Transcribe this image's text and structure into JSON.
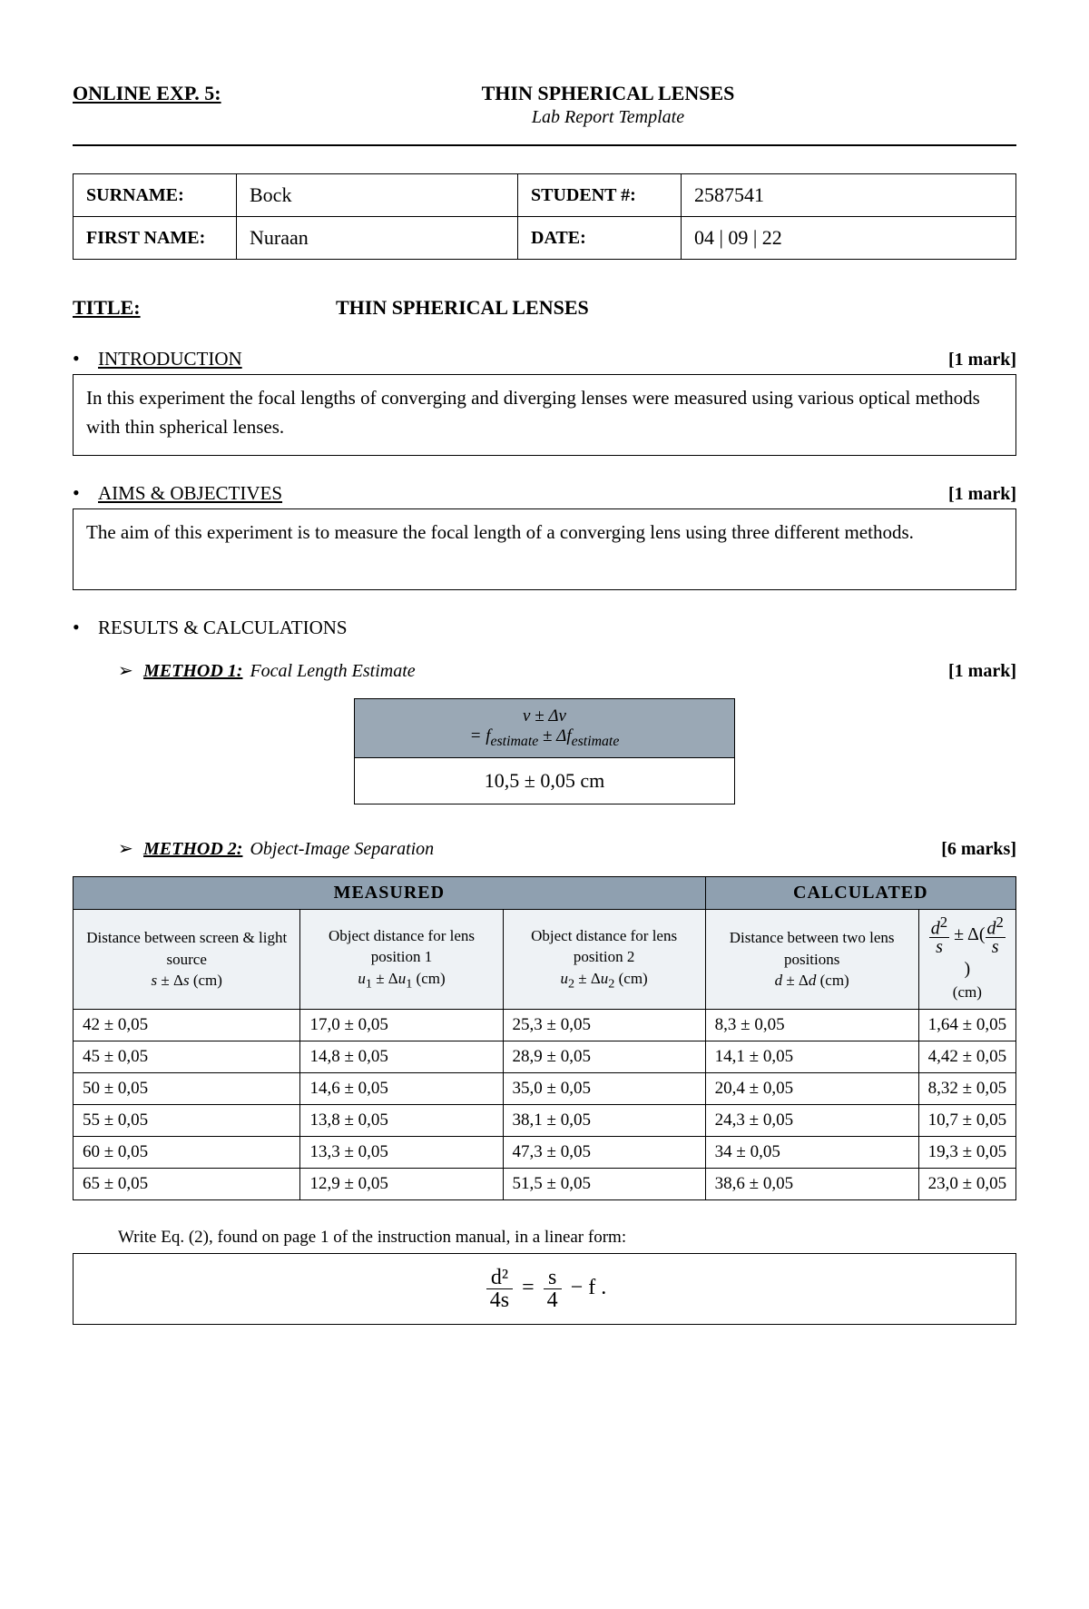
{
  "header": {
    "exp_label": "ONLINE EXP. 5:",
    "title": "THIN SPHERICAL LENSES",
    "subtitle": "Lab Report Template"
  },
  "info": {
    "surname_lbl": "SURNAME:",
    "surname_val": "Bock",
    "student_lbl": "STUDENT #:",
    "student_val": "2587541",
    "first_lbl": "FIRST NAME:",
    "first_val": "Nuraan",
    "date_lbl": "DATE:",
    "date_val": "04 | 09 | 22"
  },
  "title_section": {
    "label": "TITLE:",
    "value": "THIN SPHERICAL LENSES"
  },
  "intro": {
    "heading": "INTRODUCTION",
    "marks": "[1 mark]",
    "text": "In this experiment the focal lengths of converging and diverging lenses were measured using various optical methods with thin spherical lenses."
  },
  "aims": {
    "heading": "AIMS & OBJECTIVES",
    "marks": "[1 mark]",
    "text": "The aim of this experiment is to measure the focal length of a converging lens using three different methods."
  },
  "results_heading": "RESULTS & CALCULATIONS",
  "method1": {
    "label": "METHOD 1:",
    "desc": "Focal Length Estimate",
    "marks": "[1  mark]",
    "header_html": "v ± Δv<br>= f<sub>estimate</sub> ± Δf<sub>estimate</sub>",
    "value": "10,5  ±  0,05 cm"
  },
  "method2": {
    "label": "METHOD 2:",
    "desc": "Object-Image Separation",
    "marks": "[6 marks]",
    "group_measured": "MEASURED",
    "group_calc": "CALCULATED",
    "col1": "Distance between screen & light source<br><i>s</i> ± Δ<i>s</i> (cm)",
    "col2": "Object distance for lens position 1<br><i>u</i><sub>1</sub> ± Δ<i>u</i><sub>1</sub> (cm)",
    "col3": "Object distance for lens position 2<br><i>u</i><sub>2</sub> ± Δ<i>u</i><sub>2</sub> (cm)",
    "col4": "Distance between two lens positions<br><i>d</i> ± Δ<i>d</i> (cm)",
    "col5_html": "<span style='font-size:20px'><span style='display:inline-block;vertical-align:middle;text-align:center;line-height:1'><span style='display:block;border-bottom:1px solid #000;padding:0 2px'><i>d</i><sup>2</sup></span><span style='display:block;padding:0 2px'><i>s</i></span></span> ± Δ(<span style='display:inline-block;vertical-align:middle;text-align:center;line-height:1'><span style='display:block;border-bottom:1px solid #000;padding:0 2px'><i>d</i><sup>2</sup></span><span style='display:block;padding:0 2px'><i>s</i></span></span>)</span><br>(cm)",
    "rows": [
      [
        "42  ± 0,05",
        "17,0  ± 0,05",
        "25,3  ± 0,05",
        "8,3  ± 0,05",
        "1,64 ± 0,05"
      ],
      [
        "45  ± 0,05",
        "14,8  ± 0,05",
        "28,9  ± 0,05",
        "14,1  ± 0,05",
        "4,42 ± 0,05"
      ],
      [
        "50  ± 0,05",
        "14,6  ± 0,05",
        "35,0  ± 0,05",
        "20,4 ± 0,05",
        "8,32 ± 0,05"
      ],
      [
        "55  ± 0,05",
        "13,8  ± 0,05",
        "38,1  ± 0,05",
        "24,3  ± 0,05",
        "10,7 ± 0,05"
      ],
      [
        "60  ± 0,05",
        "13,3  ± 0,05",
        "47,3  ± 0,05",
        "34   ± 0,05",
        "19,3 ± 0,05"
      ],
      [
        "65  ± 0,05",
        "12,9  ± 0,05",
        "51,5  ± 0,05",
        "38,6  ± 0,05",
        "23,0 ± 0,05"
      ]
    ]
  },
  "eq": {
    "label": "Write Eq. (2), found on page 1 of the instruction manual, in a linear form:"
  }
}
